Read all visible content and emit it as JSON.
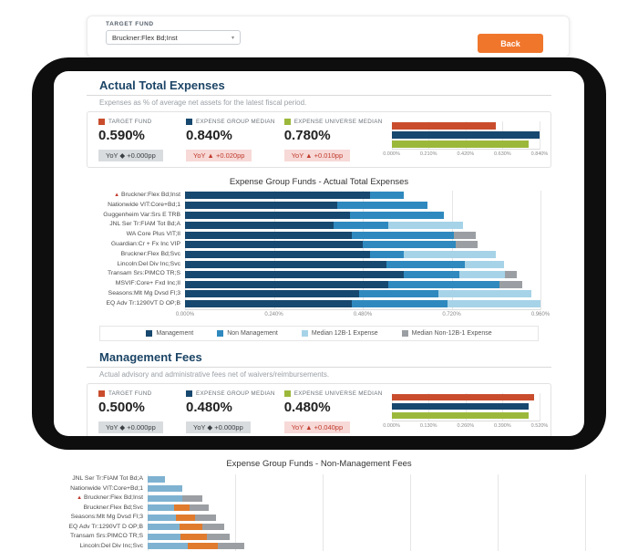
{
  "colors": {
    "accent_orange": "#f0762c",
    "target_red": "#c94d2d",
    "navy": "#17486f",
    "mid_blue": "#2f89be",
    "light_blue": "#a6d3e8",
    "green": "#9cb83b",
    "gray_segment": "#9b9fa3"
  },
  "top_bar": {
    "target_fund_label": "TARGET FUND",
    "selected_fund": "Bruckner:Flex Bd;Inst",
    "back_label": "Back"
  },
  "sections": [
    {
      "title": "Actual Total Expenses",
      "subtitle": "Expenses as % of average net assets for the latest fiscal period.",
      "metrics": [
        {
          "label": "TARGET FUND",
          "swatch": "#c94d2d",
          "value": "0.590%",
          "yoy": "YoY ◆ +0.000pp",
          "trend": "flat"
        },
        {
          "label": "EXPENSE GROUP MEDIAN",
          "swatch": "#17486f",
          "value": "0.840%",
          "yoy": "YoY ▲ +0.020pp",
          "trend": "up"
        },
        {
          "label": "EXPENSE UNIVERSE MEDIAN",
          "swatch": "#9cb83b",
          "value": "0.780%",
          "yoy": "YoY ▲ +0.010pp",
          "trend": "up"
        }
      ]
    },
    {
      "title": "Management Fees",
      "subtitle": "Actual advisory and administrative fees net of waivers/reimbursements.",
      "metrics": [
        {
          "label": "TARGET FUND",
          "swatch": "#c94d2d",
          "value": "0.500%",
          "yoy": "YoY ◆ +0.000pp",
          "trend": "flat"
        },
        {
          "label": "EXPENSE GROUP MEDIAN",
          "swatch": "#17486f",
          "value": "0.480%",
          "yoy": "YoY ◆ +0.000pp",
          "trend": "flat"
        },
        {
          "label": "EXPENSE UNIVERSE MEDIAN",
          "swatch": "#9cb83b",
          "value": "0.480%",
          "yoy": "YoY ▲ +0.040pp",
          "trend": "up"
        }
      ]
    }
  ],
  "chart_data": [
    {
      "id": "actual-total-expenses-summary",
      "type": "bar",
      "orientation": "horizontal",
      "categories": [
        "TARGET FUND",
        "EXPENSE GROUP MEDIAN",
        "EXPENSE UNIVERSE MEDIAN"
      ],
      "values": [
        0.59,
        0.84,
        0.78
      ],
      "colors": [
        "#c94d2d",
        "#17486f",
        "#9cb83b"
      ],
      "xlim": [
        0,
        0.84
      ],
      "ticks": [
        "0.000%",
        "0.210%",
        "0.420%",
        "0.630%",
        "0.840%"
      ]
    },
    {
      "id": "expense-group-actual-total-expenses",
      "type": "bar",
      "stacked": true,
      "orientation": "horizontal",
      "title": "Expense Group Funds - Actual Total Expenses",
      "target_index": 0,
      "categories": [
        "Bruckner:Flex Bd;Inst",
        "Nationwide VIT:Core+Bd;1",
        "Guggenheim Var:Srs E TRB",
        "JNL Ser Tr:FIAM Tot Bd;A",
        "WA Core Plus VIT;II",
        "Guardian:Cr + Fx Inc VIP",
        "Bruckner:Flex Bd;Svc",
        "Lincoln:Del Div Inc;Svc",
        "Transam Srs:PIMCO TR;S",
        "MSVIF:Core+ Fxd Inc;II",
        "Seasons:Mlt Mg Dvsd Fl;3",
        "EQ Adv Tr:1290VT D OP;B"
      ],
      "series": [
        {
          "name": "Management",
          "color": "#17486f",
          "values": [
            0.5,
            0.41,
            0.445,
            0.4,
            0.45,
            0.48,
            0.5,
            0.545,
            0.59,
            0.55,
            0.47,
            0.45
          ]
        },
        {
          "name": "Non Management",
          "color": "#2f89be",
          "values": [
            0.09,
            0.245,
            0.255,
            0.15,
            0.275,
            0.25,
            0.09,
            0.21,
            0.15,
            0.3,
            0.215,
            0.26
          ]
        },
        {
          "name": "Median 12B-1 Expense",
          "color": "#a6d3e8",
          "values": [
            0,
            0,
            0,
            0.2,
            0,
            0,
            0.25,
            0.107,
            0.125,
            0,
            0.25,
            0.25
          ]
        },
        {
          "name": "Median Non-12B-1 Expense",
          "color": "#9b9fa3",
          "values": [
            0,
            0,
            0,
            0,
            0.06,
            0.06,
            0,
            0,
            0.03,
            0.06,
            0,
            0
          ]
        }
      ],
      "xlim": [
        0,
        0.96
      ],
      "ticks": [
        "0.000%",
        "0.240%",
        "0.480%",
        "0.720%",
        "0.960%"
      ],
      "legend_position": "bottom"
    },
    {
      "id": "management-fees-summary",
      "type": "bar",
      "orientation": "horizontal",
      "categories": [
        "TARGET FUND",
        "EXPENSE GROUP MEDIAN",
        "EXPENSE UNIVERSE MEDIAN"
      ],
      "values": [
        0.5,
        0.48,
        0.48
      ],
      "colors": [
        "#c94d2d",
        "#17486f",
        "#9cb83b"
      ],
      "xlim": [
        0,
        0.52
      ],
      "ticks": [
        "0.000%",
        "0.130%",
        "0.260%",
        "0.390%",
        "0.520%"
      ]
    },
    {
      "id": "expense-group-non-management-fees",
      "type": "bar",
      "stacked": true,
      "orientation": "horizontal",
      "title": "Expense Group Funds - Non-Management Fees",
      "target_index": 2,
      "categories": [
        "JNL Ser Tr:FIAM Tot Bd;A",
        "Nationwide VIT:Core+Bd;1",
        "Bruckner:Flex Bd;Inst",
        "Bruckner:Flex Bd;Svc",
        "Seasons:Mlt Mg Dvsd Fl;3",
        "EQ Adv Tr:1290VT D OP;B",
        "Transam Srs:PIMCO TR;S",
        "Lincoln:Del Div Inc;Svc"
      ],
      "series": [
        {
          "name": "segment-1",
          "color": "#7fb2d1",
          "values": [
            0.02,
            0.04,
            0.04,
            0.03,
            0.032,
            0.036,
            0.038,
            0.046
          ]
        },
        {
          "name": "segment-2",
          "color": "#e07b2e",
          "values": [
            0,
            0,
            0,
            0.018,
            0.022,
            0.026,
            0.03,
            0.034
          ]
        },
        {
          "name": "segment-3",
          "color": "#9b9fa3",
          "values": [
            0,
            0,
            0.022,
            0.022,
            0.024,
            0.026,
            0.026,
            0.03
          ]
        }
      ],
      "xlim": [
        0,
        0.5
      ],
      "ticks": [],
      "gridline_count": 6
    }
  ]
}
